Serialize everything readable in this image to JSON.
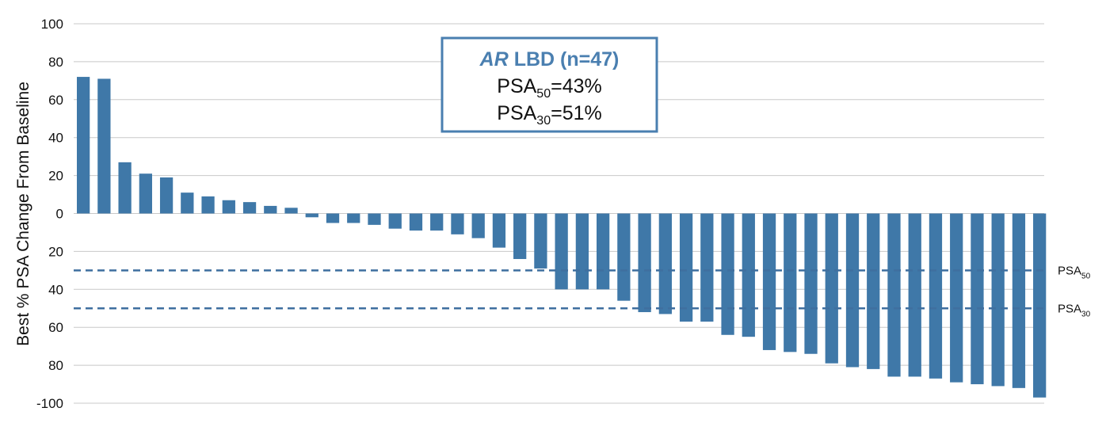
{
  "chart_data": {
    "type": "bar",
    "ylabel": "Best % PSA Change From Baseline",
    "ylim": [
      -100,
      100
    ],
    "yticks": [
      100,
      80,
      60,
      40,
      20,
      0,
      -20,
      -40,
      -60,
      -80,
      -100
    ],
    "ytick_labels": [
      "100",
      "80",
      "60",
      "40",
      "20",
      "0",
      "20",
      "40",
      "60",
      "80",
      "-100"
    ],
    "values": [
      72,
      71,
      27,
      21,
      19,
      11,
      9,
      7,
      6,
      4,
      3,
      -2,
      -5,
      -5,
      -6,
      -8,
      -9,
      -9,
      -11,
      -13,
      -18,
      -24,
      -29,
      -40,
      -40,
      -40,
      -46,
      -52,
      -53,
      -57,
      -57,
      -64,
      -65,
      -72,
      -73,
      -74,
      -79,
      -81,
      -82,
      -86,
      -86,
      -87,
      -89,
      -90,
      -91,
      -92,
      -97
    ],
    "bar_color": "#3f78a8",
    "grid": true,
    "thresholds": [
      {
        "value": -30,
        "label": "PSA",
        "sub": "50"
      },
      {
        "value": -50,
        "label": "PSA",
        "sub": "30"
      }
    ],
    "annotation": {
      "title_italic": "AR",
      "title_rest": " LBD (n=47)",
      "lines": [
        {
          "label": "PSA",
          "sub": "50",
          "value": "=43%"
        },
        {
          "label": "PSA",
          "sub": "30",
          "value": "=51%"
        }
      ]
    }
  }
}
